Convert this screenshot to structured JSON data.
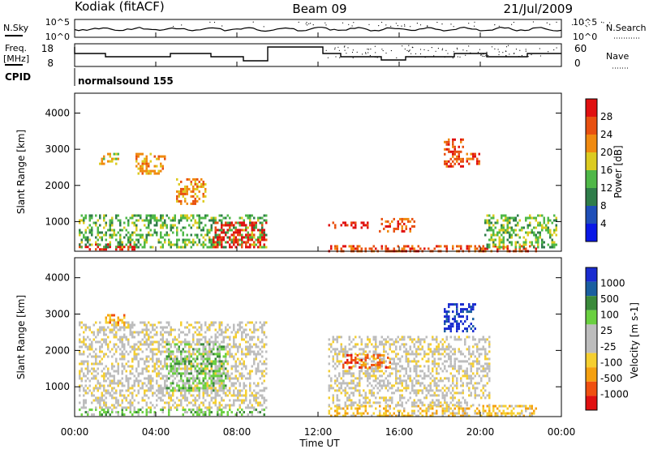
{
  "header": {
    "station": "Kodiak (fitACF)",
    "beam": "Beam 09",
    "date": "21/Jul/2009"
  },
  "top_panels": {
    "nsky_label": "N.Sky",
    "nsky_ticks": [
      "10^5",
      "10^0"
    ],
    "nsearch_label": "N.Search",
    "nsearch_ticks": [
      "10^5",
      "10^0"
    ],
    "freq_label_line1": "Freq.",
    "freq_label_line2": "[MHz]",
    "freq_ticks": [
      "18",
      "8"
    ],
    "nave_label": "Nave",
    "nave_ticks": [
      "60",
      "0"
    ],
    "cpid_label": "CPID",
    "cpid_value": "normalsound 155"
  },
  "time_axis": {
    "ticks": [
      "00:00",
      "04:00",
      "08:00",
      "12:00",
      "16:00",
      "20:00",
      "00:00"
    ],
    "label": "Time UT"
  },
  "colors": {
    "power_scale": [
      "#0a18e6",
      "#1f4fb8",
      "#2f7d4a",
      "#4fb848",
      "#dccb20",
      "#f08a10",
      "#e85010",
      "#e01010"
    ],
    "velocity_scale": [
      "#e01010",
      "#f05010",
      "#f5a010",
      "#f5cf30",
      "#bdbdbd",
      "#bdbdbd",
      "#6ad040",
      "#3a8a3a",
      "#1a5fa0",
      "#1a2cd0"
    ]
  },
  "chart_data": [
    {
      "type": "heatmap",
      "name": "power",
      "ylabel": "Slant Range [km]",
      "yticks": [
        "1000",
        "2000",
        "3000",
        "4000"
      ],
      "ylim": [
        180,
        4550
      ],
      "xlim_hours": [
        0,
        24
      ],
      "colorbar_label": "Power [dB]",
      "colorbar_ticks": [
        "4",
        "8",
        "12",
        "16",
        "20",
        "24",
        "28"
      ],
      "data_gap_hours": [
        9.6,
        12.5
      ],
      "echo_regions": [
        {
          "t": [
            0.2,
            3.0
          ],
          "r": [
            200,
            400
          ],
          "level": 7
        },
        {
          "t": [
            0.2,
            9.5
          ],
          "r": [
            300,
            1200
          ],
          "level": 3
        },
        {
          "t": [
            6.8,
            9.5
          ],
          "r": [
            300,
            1000
          ],
          "level": 7
        },
        {
          "t": [
            1.2,
            2.2
          ],
          "r": [
            2600,
            2900
          ],
          "level": 4
        },
        {
          "t": [
            3.0,
            4.5
          ],
          "r": [
            2300,
            2900
          ],
          "level": 5
        },
        {
          "t": [
            5.0,
            6.5
          ],
          "r": [
            1500,
            2200
          ],
          "level": 5
        },
        {
          "t": [
            12.5,
            22.8
          ],
          "r": [
            200,
            350
          ],
          "level": 6
        },
        {
          "t": [
            12.5,
            14.5
          ],
          "r": [
            800,
            1000
          ],
          "level": 7
        },
        {
          "t": [
            15.0,
            16.8
          ],
          "r": [
            700,
            1100
          ],
          "level": 6
        },
        {
          "t": [
            18.2,
            19.2
          ],
          "r": [
            2500,
            3300
          ],
          "level": 6
        },
        {
          "t": [
            19.3,
            20.0
          ],
          "r": [
            2600,
            2900
          ],
          "level": 6
        },
        {
          "t": [
            20.2,
            23.8
          ],
          "r": [
            300,
            1200
          ],
          "level": 3
        }
      ]
    },
    {
      "type": "heatmap",
      "name": "velocity",
      "ylabel": "Slant Range [km]",
      "yticks": [
        "1000",
        "2000",
        "3000",
        "4000"
      ],
      "ylim": [
        180,
        4550
      ],
      "xlim_hours": [
        0,
        24
      ],
      "colorbar_label": "Velocity [m s-1]",
      "colorbar_ticks": [
        "1000",
        "500",
        "100",
        "25",
        "-25",
        "-100",
        "-500",
        "-1000"
      ],
      "data_gap_hours": [
        9.6,
        12.5
      ],
      "echo_regions": [
        {
          "t": [
            0.2,
            9.5
          ],
          "r": [
            200,
            400
          ],
          "level": 6
        },
        {
          "t": [
            0.2,
            9.5
          ],
          "r": [
            400,
            2800
          ],
          "level": 4
        },
        {
          "t": [
            4.5,
            7.5
          ],
          "r": [
            900,
            2200
          ],
          "level": 6
        },
        {
          "t": [
            1.5,
            2.5
          ],
          "r": [
            2700,
            3000
          ],
          "level": 2
        },
        {
          "t": [
            12.5,
            22.8
          ],
          "r": [
            200,
            500
          ],
          "level": 3
        },
        {
          "t": [
            12.5,
            20.5
          ],
          "r": [
            500,
            2400
          ],
          "level": 4
        },
        {
          "t": [
            13.2,
            15.5
          ],
          "r": [
            1500,
            1900
          ],
          "level": 1
        },
        {
          "t": [
            18.2,
            19.8
          ],
          "r": [
            2500,
            3300
          ],
          "level": 9
        }
      ]
    }
  ]
}
